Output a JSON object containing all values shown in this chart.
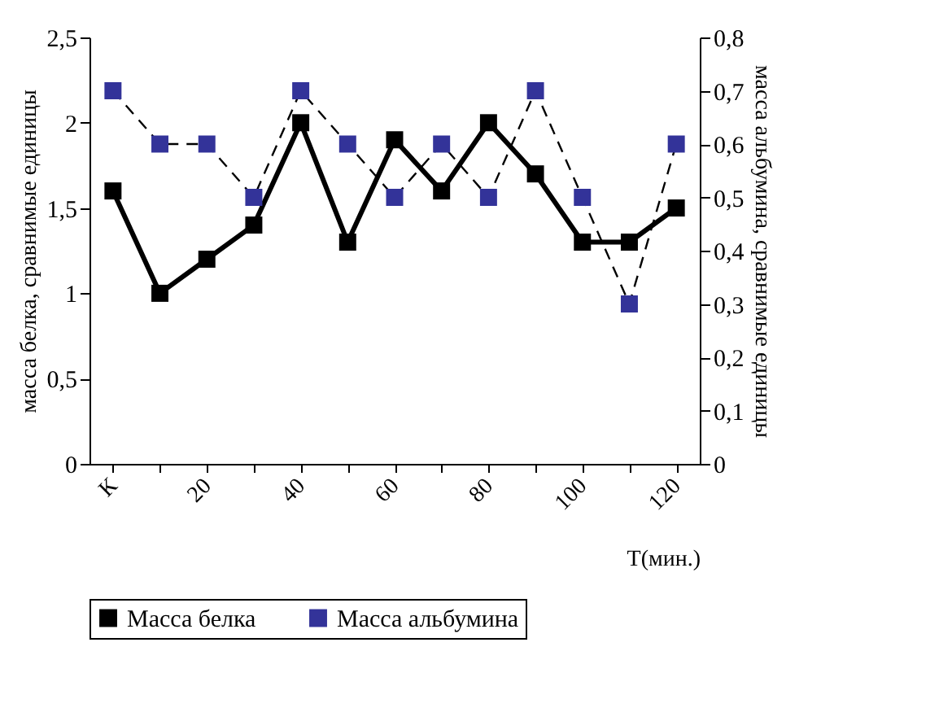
{
  "chart_data": {
    "type": "line",
    "xlabel": "T(мин.)",
    "ylabel": "масса белка, сравнимые единицы",
    "y2label": "масса альбумина, сравнимые единицы",
    "categories": [
      "К",
      null,
      "20",
      null,
      "40",
      null,
      "60",
      null,
      "80",
      null,
      "100",
      null,
      "120"
    ],
    "series": [
      {
        "name": "Масса белка",
        "color": "#000000",
        "line_style": "solid",
        "values": [
          1.6,
          1.0,
          1.2,
          1.4,
          2.0,
          1.3,
          1.9,
          1.6,
          2.0,
          1.7,
          1.3,
          1.3,
          1.5
        ]
      },
      {
        "name": "Масса альбумина",
        "color": "#333399",
        "line_style": "dashed",
        "axis": "y2",
        "values": [
          0.7,
          0.6,
          0.6,
          0.5,
          0.7,
          0.6,
          0.5,
          0.6,
          0.5,
          0.7,
          0.5,
          0.3,
          0.6
        ]
      }
    ],
    "ylim": [
      0,
      2.5
    ],
    "yticks": [
      0,
      {
        "value": 0.5,
        "label": "0,5"
      },
      1,
      {
        "value": 1.5,
        "label": "1,5"
      },
      2,
      {
        "value": 2.5,
        "label": "2,5"
      }
    ],
    "y2lim": [
      0,
      0.8
    ],
    "y2ticks": [
      0,
      {
        "value": 0.1,
        "label": "0,1"
      },
      {
        "value": 0.2,
        "label": "0,2"
      },
      {
        "value": 0.3,
        "label": "0,3"
      },
      {
        "value": 0.4,
        "label": "0,4"
      },
      {
        "value": 0.5,
        "label": "0,5"
      },
      {
        "value": 0.6,
        "label": "0,6"
      },
      {
        "value": 0.7,
        "label": "0,7"
      },
      {
        "value": 0.8,
        "label": "0,8"
      }
    ],
    "marker": "square",
    "legend": "bottom",
    "grid": false
  }
}
